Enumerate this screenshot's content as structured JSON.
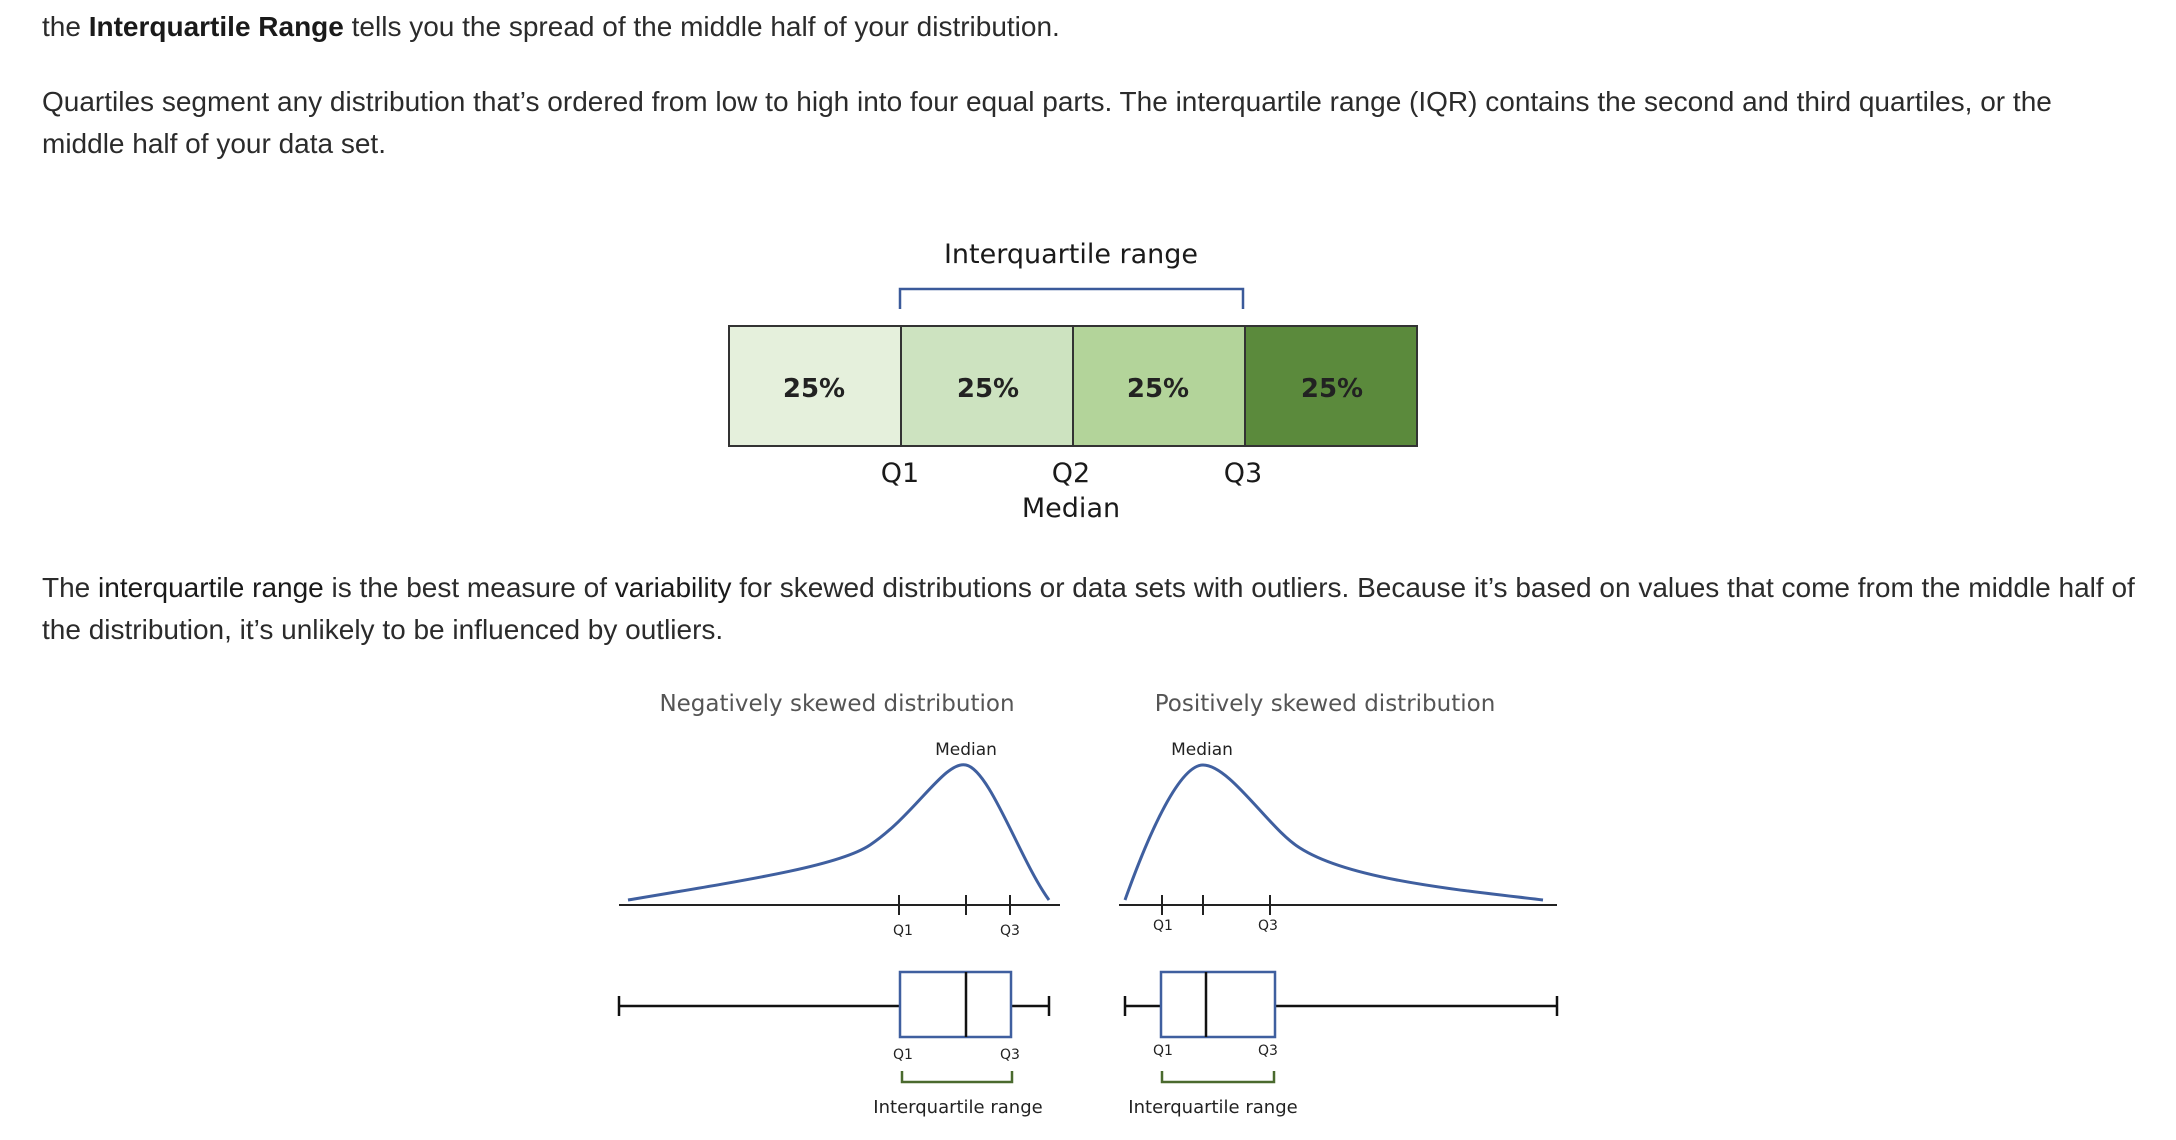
{
  "paragraphs": {
    "p1": {
      "pre": "the ",
      "bold": "Interquartile Range",
      "post": " tells you the spread of the middle half of your distribution."
    },
    "p2": {
      "text": "Quartiles segment any distribution that’s ordered from low to high into four equal parts. The interquartile range (IQR) contains the second and third quartiles, or the middle half of your data set."
    },
    "p3": {
      "t1": "The ",
      "term1": "interquartile range",
      "t2": " is the best measure of ",
      "term2": "variability",
      "t3": " for skewed distributions or data sets with outliers. Because it’s based on values that come from the middle half of the distribution, it’s unlikely to be influenced by outliers."
    }
  },
  "quartile_diagram": {
    "title": "Interquartile range",
    "segments": [
      {
        "label": "25%",
        "color": "#e5f0dc"
      },
      {
        "label": "25%",
        "color": "#cde3c0"
      },
      {
        "label": "25%",
        "color": "#b3d49a"
      },
      {
        "label": "25%",
        "color": "#5b8a3c"
      }
    ],
    "markers": {
      "q1": "Q1",
      "q2": "Q2",
      "median": "Median",
      "q3": "Q3"
    },
    "bracket_color": "#3b5a9a",
    "border_color": "#333333"
  },
  "skew_diagram": {
    "negative": {
      "title": "Negatively skewed distribution",
      "median": "Median",
      "q1": "Q1",
      "q3": "Q3",
      "box_q1": "Q1",
      "box_q3": "Q3",
      "iqr": "Interquartile range"
    },
    "positive": {
      "title": "Positively skewed distribution",
      "median": "Median",
      "q1": "Q1",
      "q3": "Q3",
      "box_q1": "Q1",
      "box_q3": "Q3",
      "iqr": "Interquartile range"
    },
    "curve_color": "#3f5f9f",
    "iqr_bracket_color": "#4a6a2e"
  }
}
